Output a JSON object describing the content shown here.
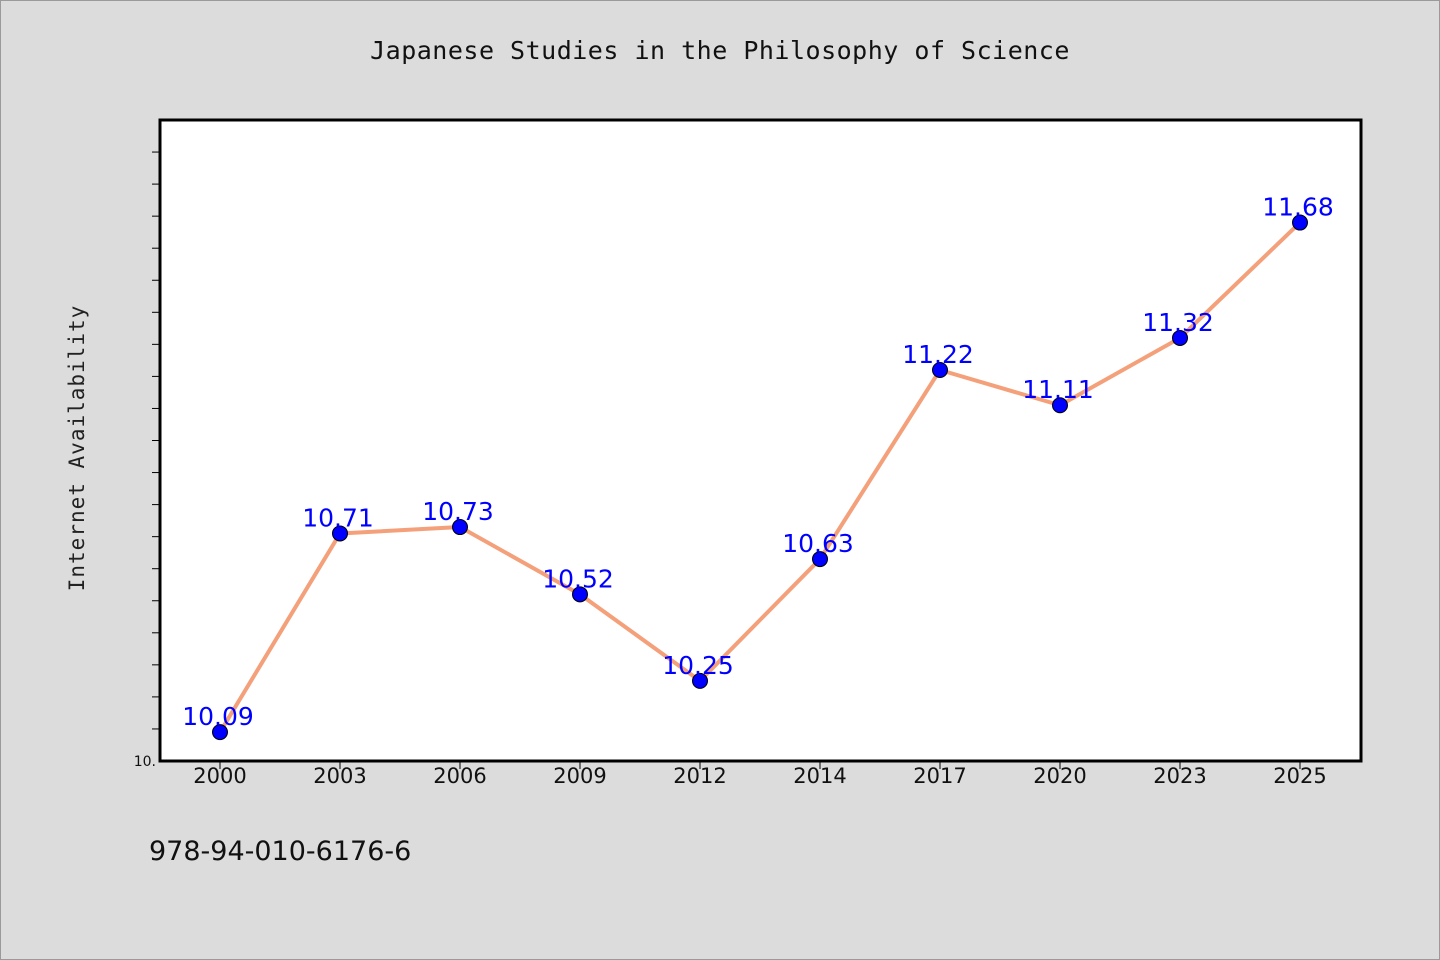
{
  "page": {
    "title": "Japanese Studies in the Philosophy of Science",
    "footer_code": "978-94-010-6176-6"
  },
  "chart_data": {
    "type": "line",
    "title": "Japanese Studies in the Philosophy of Science",
    "xlabel": "",
    "ylabel": "Internet Availability",
    "categories": [
      "2000",
      "2003",
      "2006",
      "2009",
      "2012",
      "2014",
      "2017",
      "2020",
      "2023",
      "2025"
    ],
    "series": [
      {
        "values": [
          10.09,
          10.71,
          10.73,
          10.52,
          10.25,
          10.63,
          11.22,
          11.11,
          11.32,
          11.68
        ],
        "labels": [
          "10.09",
          "10.71",
          "10.73",
          "10.52",
          "10.25",
          "10.63",
          "11.22",
          "11.11",
          "11.32",
          "11.68"
        ],
        "line_color": "#f4a07a",
        "marker_color": "#0000ff"
      }
    ],
    "ylim": [
      10.0,
      12.0
    ],
    "y_min_label": "10.",
    "grid": false,
    "legend": "none",
    "colors": {
      "line": "#f4a07a",
      "marker": "#0000ff",
      "data_label": "#0000ff",
      "plot_bg": "#ffffff",
      "page_bg": "#dcdcdc"
    }
  }
}
